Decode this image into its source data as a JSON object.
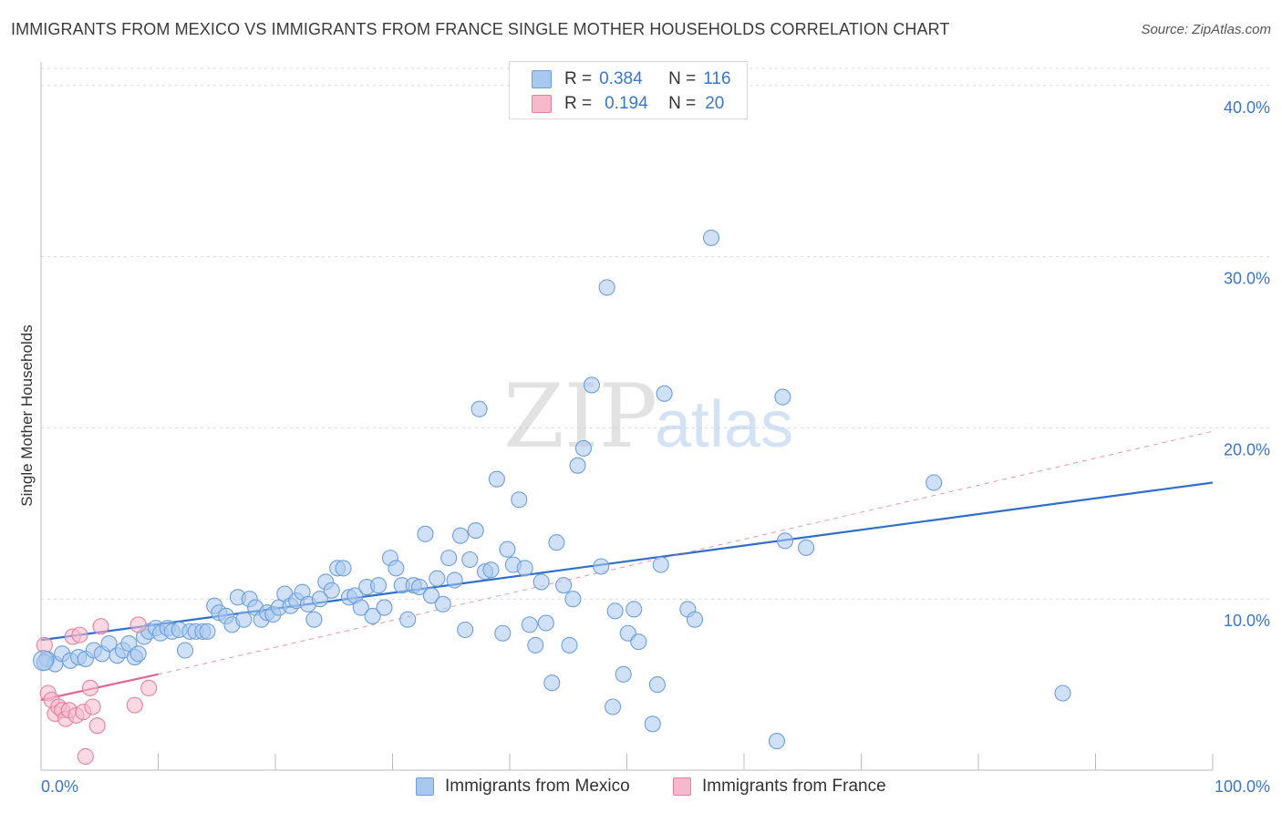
{
  "title": "IMMIGRANTS FROM MEXICO VS IMMIGRANTS FROM FRANCE SINGLE MOTHER HOUSEHOLDS CORRELATION CHART",
  "source": "Source: ZipAtlas.com",
  "watermark": {
    "zip": "ZIP",
    "atlas": "atlas"
  },
  "legend": {
    "r_label": "R =",
    "n_label": "N =",
    "series": [
      {
        "name": "Immigrants from Mexico",
        "r": "0.384",
        "n": "116",
        "color": "#a9c8f0",
        "edge": "#6d9fd9"
      },
      {
        "name": "Immigrants from France",
        "r": "0.194",
        "n": "20",
        "color": "#f6b9cc",
        "edge": "#e57fa0"
      }
    ]
  },
  "colors": {
    "blue_line": "#2f6fcc",
    "pink_line": "#e0668f",
    "grid": "#d9d9d9",
    "tick_text": "#3a76c9"
  },
  "chart_data": {
    "type": "scatter",
    "title": "IMMIGRANTS FROM MEXICO VS IMMIGRANTS FROM FRANCE SINGLE MOTHER HOUSEHOLDS CORRELATION CHART",
    "xlabel": "",
    "ylabel": "Single Mother Households",
    "xlim": [
      0,
      100
    ],
    "ylim": [
      0,
      41
    ],
    "x_tick_labels": [
      "0.0%",
      "100.0%"
    ],
    "y_ticks": [
      10,
      20,
      30,
      40
    ],
    "y_tick_labels": [
      "10.0%",
      "20.0%",
      "30.0%",
      "40.0%"
    ],
    "grid": true,
    "series": [
      {
        "name": "Immigrants from Mexico",
        "points": [
          [
            0.5,
            6.5
          ],
          [
            1.2,
            6.2
          ],
          [
            1.8,
            6.8
          ],
          [
            2.5,
            6.4
          ],
          [
            3.2,
            6.6
          ],
          [
            3.8,
            6.5
          ],
          [
            4.5,
            7.0
          ],
          [
            5.2,
            6.8
          ],
          [
            5.8,
            7.4
          ],
          [
            6.5,
            6.7
          ],
          [
            7.0,
            7.0
          ],
          [
            7.5,
            7.4
          ],
          [
            8.0,
            6.6
          ],
          [
            8.3,
            6.8
          ],
          [
            8.8,
            7.8
          ],
          [
            9.2,
            8.1
          ],
          [
            9.8,
            8.3
          ],
          [
            10.2,
            8.0
          ],
          [
            10.8,
            8.3
          ],
          [
            11.2,
            8.1
          ],
          [
            11.8,
            8.2
          ],
          [
            12.3,
            7.0
          ],
          [
            12.7,
            8.1
          ],
          [
            13.2,
            8.1
          ],
          [
            13.8,
            8.1
          ],
          [
            14.2,
            8.1
          ],
          [
            14.8,
            9.6
          ],
          [
            15.2,
            9.2
          ],
          [
            15.8,
            9.0
          ],
          [
            16.3,
            8.5
          ],
          [
            16.8,
            10.1
          ],
          [
            17.3,
            8.8
          ],
          [
            17.8,
            10.0
          ],
          [
            18.3,
            9.5
          ],
          [
            18.8,
            8.8
          ],
          [
            19.3,
            9.2
          ],
          [
            19.8,
            9.1
          ],
          [
            20.3,
            9.5
          ],
          [
            20.8,
            10.3
          ],
          [
            21.3,
            9.6
          ],
          [
            21.8,
            9.9
          ],
          [
            22.3,
            10.4
          ],
          [
            22.8,
            9.7
          ],
          [
            23.3,
            8.8
          ],
          [
            23.8,
            10.0
          ],
          [
            24.3,
            11.0
          ],
          [
            24.8,
            10.5
          ],
          [
            25.3,
            11.8
          ],
          [
            25.8,
            11.8
          ],
          [
            26.3,
            10.1
          ],
          [
            26.8,
            10.2
          ],
          [
            27.3,
            9.5
          ],
          [
            27.8,
            10.7
          ],
          [
            28.3,
            9.0
          ],
          [
            28.8,
            10.8
          ],
          [
            29.3,
            9.5
          ],
          [
            29.8,
            12.4
          ],
          [
            30.3,
            11.8
          ],
          [
            30.8,
            10.8
          ],
          [
            31.3,
            8.8
          ],
          [
            31.8,
            10.8
          ],
          [
            32.3,
            10.7
          ],
          [
            32.8,
            13.8
          ],
          [
            33.3,
            10.2
          ],
          [
            33.8,
            11.2
          ],
          [
            34.3,
            9.7
          ],
          [
            34.8,
            12.4
          ],
          [
            35.3,
            11.1
          ],
          [
            35.8,
            13.7
          ],
          [
            36.2,
            8.2
          ],
          [
            36.6,
            12.3
          ],
          [
            37.1,
            14.0
          ],
          [
            37.4,
            21.1
          ],
          [
            37.9,
            11.6
          ],
          [
            38.4,
            11.7
          ],
          [
            38.9,
            17.0
          ],
          [
            39.4,
            8.0
          ],
          [
            39.8,
            12.9
          ],
          [
            40.3,
            12.0
          ],
          [
            40.8,
            15.8
          ],
          [
            41.3,
            11.8
          ],
          [
            41.7,
            8.5
          ],
          [
            42.2,
            7.3
          ],
          [
            42.7,
            11.0
          ],
          [
            43.1,
            8.6
          ],
          [
            43.6,
            5.1
          ],
          [
            44.0,
            13.3
          ],
          [
            44.6,
            10.8
          ],
          [
            45.1,
            7.3
          ],
          [
            45.4,
            10.0
          ],
          [
            45.8,
            17.8
          ],
          [
            46.3,
            18.8
          ],
          [
            47.0,
            22.5
          ],
          [
            47.8,
            11.9
          ],
          [
            48.3,
            28.2
          ],
          [
            48.8,
            3.7
          ],
          [
            49.0,
            9.3
          ],
          [
            49.7,
            5.6
          ],
          [
            50.1,
            8.0
          ],
          [
            50.6,
            9.4
          ],
          [
            51.0,
            7.5
          ],
          [
            52.2,
            2.7
          ],
          [
            52.6,
            5.0
          ],
          [
            52.9,
            12.0
          ],
          [
            53.2,
            22.0
          ],
          [
            55.2,
            9.4
          ],
          [
            55.8,
            8.8
          ],
          [
            57.2,
            31.1
          ],
          [
            62.8,
            1.7
          ],
          [
            63.3,
            21.8
          ],
          [
            63.5,
            13.4
          ],
          [
            65.3,
            13.0
          ],
          [
            76.2,
            16.8
          ],
          [
            87.2,
            4.5
          ],
          [
            0.3,
            6.3
          ]
        ]
      },
      {
        "name": "Immigrants from France",
        "points": [
          [
            0.3,
            7.3
          ],
          [
            0.6,
            4.5
          ],
          [
            0.9,
            4.1
          ],
          [
            1.2,
            3.3
          ],
          [
            1.5,
            3.7
          ],
          [
            1.8,
            3.5
          ],
          [
            2.1,
            3.0
          ],
          [
            2.4,
            3.5
          ],
          [
            2.7,
            7.8
          ],
          [
            3.0,
            3.2
          ],
          [
            3.3,
            7.9
          ],
          [
            3.6,
            3.4
          ],
          [
            3.8,
            0.8
          ],
          [
            4.2,
            4.8
          ],
          [
            4.4,
            3.7
          ],
          [
            4.8,
            2.6
          ],
          [
            5.1,
            8.4
          ],
          [
            8.0,
            3.8
          ],
          [
            8.3,
            8.5
          ],
          [
            9.2,
            4.8
          ]
        ]
      }
    ],
    "trendlines": [
      {
        "series": "Immigrants from Mexico",
        "x": [
          0,
          100
        ],
        "y": [
          7.6,
          16.8
        ],
        "style": "solid"
      },
      {
        "series": "Immigrants from France",
        "x": [
          0,
          10
        ],
        "y": [
          4.1,
          5.6
        ],
        "style": "solid"
      },
      {
        "series": "Immigrants from France",
        "x": [
          10,
          100
        ],
        "y": [
          5.6,
          19.8
        ],
        "style": "dashed"
      }
    ]
  }
}
